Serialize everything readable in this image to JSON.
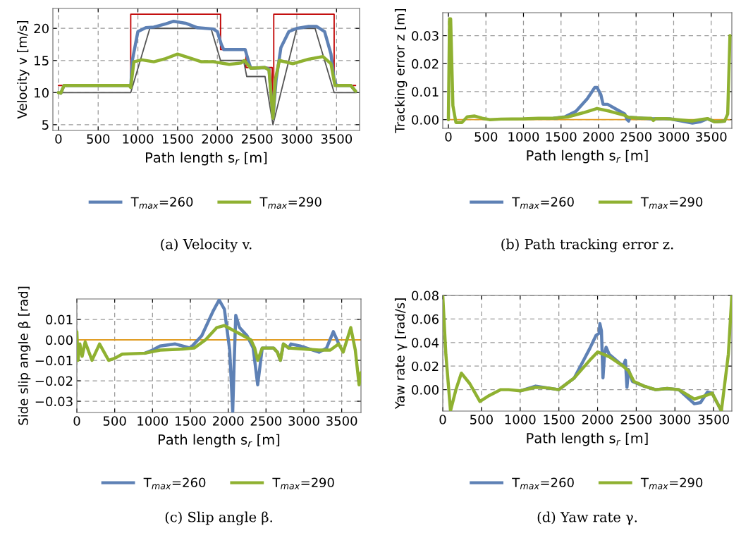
{
  "chart_data": [
    {
      "type": "line",
      "xlabel": "Path length s$_{r}$ [m]",
      "ylabel": "Velocity v [m/s]",
      "annotations": [
        "(a) Velocity v."
      ],
      "xlim": [
        -70,
        3790
      ],
      "ylim": [
        4.1,
        23.1
      ],
      "xticks": [
        0,
        500,
        1000,
        1500,
        2000,
        2500,
        3000,
        3500
      ],
      "yticks": [
        5,
        10,
        15,
        20
      ],
      "grid": true,
      "legend": "bottom",
      "series": [
        {
          "color": "#c00000",
          "x": [
            0,
            910,
            910,
            2040,
            2040,
            2360,
            2360,
            2690,
            2690,
            2710,
            2710,
            3470,
            3470,
            3740
          ],
          "values": [
            11.1,
            11.1,
            22.2,
            22.2,
            16.7,
            16.7,
            13.9,
            13.9,
            7,
            7,
            22.2,
            22.2,
            11.1,
            11.1
          ]
        },
        {
          "color": "#555555",
          "x": [
            0,
            910,
            1150,
            1920,
            2040,
            2330,
            2370,
            2600,
            2700,
            3000,
            3230,
            3470,
            3750
          ],
          "values": [
            10,
            10,
            20,
            20,
            15,
            15,
            12.5,
            12.5,
            5,
            20,
            20,
            10,
            10
          ]
        },
        {
          "name": "T$_{max}$=260",
          "color": "#5e81b5",
          "x": [
            0,
            30,
            70,
            900,
            910,
            930,
            1000,
            1100,
            1200,
            1350,
            1450,
            1600,
            1750,
            1950,
            2000,
            2050,
            2080,
            2350,
            2390,
            2420,
            2600,
            2650,
            2700,
            2740,
            2800,
            2900,
            3000,
            3150,
            3250,
            3350,
            3430,
            3470,
            3500,
            3680,
            3740
          ],
          "values": [
            10,
            9.9,
            11.1,
            11.1,
            10.8,
            15,
            19.5,
            20.1,
            20.2,
            20.7,
            21.1,
            20.8,
            20.1,
            19.9,
            19.5,
            17.5,
            16.7,
            16.7,
            15,
            13.8,
            13.9,
            13.7,
            6,
            12,
            17,
            19.5,
            20,
            20.3,
            20.3,
            19.5,
            16,
            12,
            11.1,
            11.1,
            10.2
          ]
        },
        {
          "name": "T$_{max}$=290",
          "color": "#8fb131",
          "x": [
            0,
            30,
            70,
            890,
            910,
            950,
            1050,
            1200,
            1350,
            1500,
            1650,
            1800,
            1950,
            2150,
            2300,
            2340,
            2420,
            2600,
            2650,
            2700,
            2730,
            2780,
            2950,
            3150,
            3330,
            3430,
            3480,
            3680,
            3740
          ],
          "values": [
            10,
            9.9,
            11.1,
            11.1,
            10.8,
            14.8,
            15.1,
            14.8,
            15.3,
            16.0,
            15.4,
            14.8,
            14.8,
            14.4,
            14.6,
            15,
            13.8,
            13.9,
            13.5,
            6,
            12,
            15,
            14.5,
            15.2,
            15.6,
            14.5,
            11.1,
            11.1,
            10.2
          ]
        }
      ]
    },
    {
      "type": "line",
      "xlabel": "Path length s$_{r}$ [m]",
      "ylabel": "Tracking error z [m]",
      "annotations": [
        "(b) Path tracking error z."
      ],
      "xlim": [
        -75,
        3775
      ],
      "ylim": [
        -0.0031,
        0.0382
      ],
      "xticks": [
        0,
        500,
        1000,
        1500,
        2000,
        2500,
        3000,
        3500
      ],
      "yticks": [
        {
          "value": 0,
          "label": "0.00"
        },
        {
          "value": 0.01,
          "label": "0.01"
        },
        {
          "value": 0.02,
          "label": "0.02"
        },
        {
          "value": 0.03,
          "label": "0.03"
        }
      ],
      "grid": true,
      "legend": "bottom",
      "series": [
        {
          "color": "#e19c24",
          "x": [
            0,
            3750
          ],
          "values": [
            0,
            0
          ]
        },
        {
          "name": "T$_{max}$=260",
          "color": "#5e81b5",
          "x": [
            1400,
            1550,
            1700,
            1850,
            1950,
            1980,
            2030,
            2060,
            2120,
            2250,
            2350,
            2380,
            2400,
            2420,
            2600,
            2700,
            2800,
            2950,
            3100,
            3250,
            3350,
            3450,
            3550,
            3680
          ],
          "values": [
            0.0005,
            0.001,
            0.003,
            0.0075,
            0.0115,
            0.0115,
            0.009,
            0.0055,
            0.0055,
            0.0035,
            0.002,
            0.0,
            -0.0005,
            0.0008,
            0.0005,
            0.0003,
            0.0004,
            0.0003,
            -0.0005,
            -0.0012,
            -0.0008,
            0.0003,
            -0.0008,
            -0.0005
          ]
        },
        {
          "name": "T$_{max}$=290",
          "color": "#8fb131",
          "x": [
            0,
            15,
            30,
            60,
            100,
            180,
            250,
            350,
            450,
            550,
            700,
            1000,
            1200,
            1400,
            1600,
            1800,
            1980,
            2150,
            2350,
            2400,
            2600,
            2700,
            2730,
            2760,
            2900,
            3050,
            3250,
            3350,
            3450,
            3550,
            3680,
            3720,
            3750
          ],
          "values": [
            0,
            0.036,
            0.036,
            0.005,
            -0.001,
            -0.001,
            0.001,
            0.0013,
            0.0005,
            0,
            0.0002,
            0.0003,
            0.0005,
            0.0005,
            0.001,
            0.0025,
            0.004,
            0.003,
            0.0015,
            0.0008,
            0.0005,
            0.0005,
            -0.0003,
            0.0004,
            0.0004,
            0,
            -0.0005,
            0,
            0.0004,
            -0.0008,
            -0.0005,
            0.002,
            0.03
          ]
        }
      ]
    },
    {
      "type": "line",
      "xlabel": "Path length s$_{r}$ [m]",
      "ylabel": "Side slip angle β [rad]",
      "annotations": [
        "(c) Slip angle β."
      ],
      "xlim": [
        0,
        3755
      ],
      "ylim": [
        -0.0355,
        0.02
      ],
      "xticks": [
        0,
        500,
        1000,
        1500,
        2000,
        2500,
        3000,
        3500
      ],
      "yticks": [
        {
          "value": -0.03,
          "label": "−0.03"
        },
        {
          "value": -0.02,
          "label": "−0.02"
        },
        {
          "value": -0.01,
          "label": "−0.01"
        },
        {
          "value": 0,
          "label": "0.00"
        },
        {
          "value": 0.01,
          "label": "0.01"
        }
      ],
      "grid": true,
      "legend": "bottom",
      "series": [
        {
          "color": "#e19c24",
          "x": [
            0,
            3755
          ],
          "values": [
            0,
            0
          ]
        },
        {
          "name": "T$_{max}$=260",
          "color": "#5e81b5",
          "x": [
            900,
            1000,
            1100,
            1300,
            1500,
            1650,
            1800,
            1880,
            1950,
            2020,
            2060,
            2080,
            2100,
            2150,
            2250,
            2330,
            2390,
            2450,
            2600,
            2650,
            2690,
            2730,
            2800,
            2830,
            2950,
            3200,
            3300,
            3390,
            3450,
            3460
          ],
          "values": [
            -0.0065,
            -0.005,
            -0.003,
            -0.002,
            -0.004,
            0.002,
            0.014,
            0.0195,
            0.015,
            -0.005,
            -0.035,
            -0.01,
            0.012,
            0.006,
            0.002,
            -0.004,
            -0.022,
            -0.004,
            -0.004,
            -0.006,
            -0.01,
            -0.002,
            -0.004,
            -0.002,
            -0.003,
            -0.006,
            -0.004,
            0.004,
            -0.001,
            -0.002
          ]
        },
        {
          "name": "T$_{max}$=290",
          "color": "#8fb131",
          "x": [
            0,
            15,
            40,
            70,
            110,
            200,
            300,
            420,
            500,
            600,
            900,
            1100,
            1400,
            1550,
            1700,
            1850,
            1950,
            2150,
            2300,
            2350,
            2390,
            2450,
            2600,
            2650,
            2690,
            2730,
            2800,
            3000,
            3200,
            3350,
            3460,
            3520,
            3620,
            3680,
            3730,
            3755
          ],
          "values": [
            0.004,
            -0.01,
            -0.002,
            -0.008,
            -0.001,
            -0.01,
            -0.002,
            -0.01,
            -0.009,
            -0.007,
            -0.0065,
            -0.005,
            -0.0045,
            -0.004,
            0.0,
            0.006,
            0.007,
            0.003,
            0,
            -0.004,
            -0.01,
            -0.004,
            -0.004,
            -0.006,
            -0.01,
            -0.002,
            -0.004,
            -0.0045,
            -0.005,
            -0.005,
            -0.002,
            -0.006,
            0.006,
            -0.005,
            -0.022,
            -0.016
          ]
        }
      ]
    },
    {
      "type": "line",
      "xlabel": "Path length s$_{r}$ [m]",
      "ylabel": "Yaw rate γ [rad/s]",
      "annotations": [
        "(d) Yaw rate γ."
      ],
      "xlim": [
        0,
        3735
      ],
      "ylim": [
        -0.0182,
        0.08
      ],
      "xticks": [
        0,
        500,
        1000,
        1500,
        2000,
        2500,
        3000,
        3500
      ],
      "yticks": [
        {
          "value": 0,
          "label": "0.00"
        },
        {
          "value": 0.02,
          "label": "0.02"
        },
        {
          "value": 0.04,
          "label": "0.04"
        },
        {
          "value": 0.06,
          "label": "0.06"
        },
        {
          "value": 0.08,
          "label": "0.08"
        }
      ],
      "grid": true,
      "legend": "bottom",
      "series": [
        {
          "name": "T$_{max}$=260",
          "color": "#5e81b5",
          "x": [
            1000,
            1200,
            1350,
            1500,
            1700,
            1900,
            1980,
            2020,
            2030,
            2050,
            2070,
            2090,
            2110,
            2150,
            2330,
            2360,
            2380,
            2400,
            2450,
            2600,
            2750,
            2900,
            3050,
            3250,
            3330,
            3420,
            3480,
            3600
          ],
          "values": [
            -0.001,
            0.003,
            0.0015,
            0,
            0.01,
            0.035,
            0.046,
            0.048,
            0.056,
            0.05,
            0.01,
            0.03,
            0.036,
            0.03,
            0.02,
            0.025,
            0.002,
            0.017,
            0.007,
            0.003,
            0,
            0.001,
            0,
            -0.012,
            -0.011,
            -0.002,
            -0.003,
            -0.018
          ]
        },
        {
          "name": "T$_{max}$=290",
          "color": "#8fb131",
          "x": [
            0,
            40,
            100,
            170,
            240,
            350,
            480,
            600,
            750,
            850,
            1000,
            1200,
            1350,
            1500,
            1700,
            1900,
            2000,
            2150,
            2330,
            2400,
            2470,
            2600,
            2750,
            2900,
            3050,
            3250,
            3400,
            3480,
            3600,
            3690,
            3735
          ],
          "values": [
            0.08,
            0.03,
            -0.018,
            0.0,
            0.014,
            0.005,
            -0.01,
            -0.005,
            0,
            0,
            -0.001,
            0.002,
            0.0015,
            0,
            0.01,
            0.025,
            0.032,
            0.028,
            0.02,
            0.016,
            0.007,
            0.003,
            0,
            0.001,
            0,
            -0.008,
            -0.005,
            -0.003,
            -0.018,
            0.03,
            0.08
          ]
        }
      ]
    }
  ]
}
